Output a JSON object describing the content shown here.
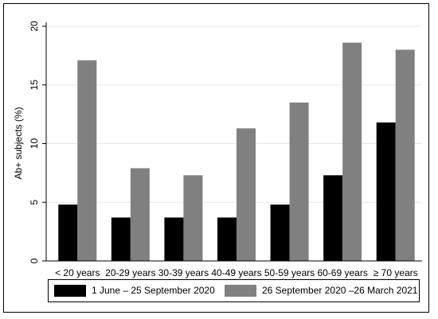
{
  "chart_data": {
    "type": "bar",
    "y_label": "Ab+ subjects (%)",
    "categories": [
      "< 20 years",
      "20-29 years",
      "30-39 years",
      "40-49 years",
      "50-59 years",
      "60-69 years",
      "≥ 70 years"
    ],
    "series": [
      {
        "name": "1 June – 25 September 2020",
        "color": "#000000",
        "values": [
          4.8,
          3.7,
          3.7,
          3.7,
          4.8,
          7.3,
          11.8
        ]
      },
      {
        "name": "26 September 2020 –26 March 2021",
        "color": "#808080",
        "values": [
          17.1,
          7.9,
          7.3,
          11.3,
          13.5,
          18.6,
          18.0
        ]
      }
    ],
    "ylim": [
      0,
      20
    ],
    "yticks": [
      0,
      5,
      10,
      15,
      20
    ],
    "grid": true
  }
}
